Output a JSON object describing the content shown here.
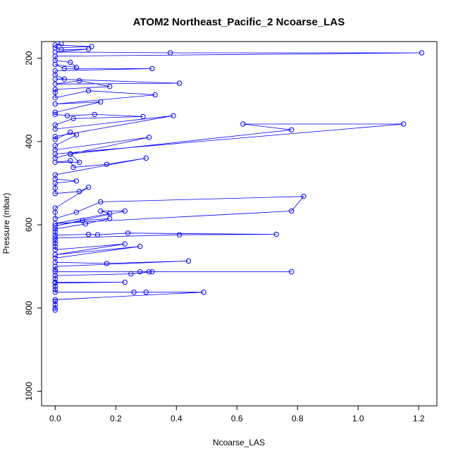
{
  "chart_data": {
    "type": "scatter",
    "title": "ATOM2 Northeast_Pacific_2 Ncoarse_LAS",
    "xlabel": "Ncoarse_LAS",
    "ylabel": "Pressure (mbar)",
    "xlim": [
      -0.045,
      1.26
    ],
    "ylim": [
      1035,
      160
    ],
    "y_reversed": true,
    "x_ticks": [
      0.0,
      0.2,
      0.4,
      0.6,
      0.8,
      1.0,
      1.2
    ],
    "x_tick_labels": [
      "0.0",
      "0.2",
      "0.4",
      "0.6",
      "0.8",
      "1.0",
      "1.2"
    ],
    "y_ticks": [
      200,
      400,
      600,
      800,
      1000
    ],
    "y_tick_labels": [
      "200",
      "400",
      "600",
      "800",
      "1000"
    ],
    "grid": false,
    "series_color": "#0000ff",
    "marker": "open-circle",
    "series": [
      {
        "connected": true,
        "points": [
          [
            0.0,
            805
          ],
          [
            0.0,
            800
          ],
          [
            0.0,
            792
          ],
          [
            0.0,
            784
          ],
          [
            0.0,
            780
          ],
          [
            0.49,
            762
          ],
          [
            0.3,
            762
          ],
          [
            0.26,
            762
          ],
          [
            0.0,
            762
          ],
          [
            0.0,
            755
          ],
          [
            0.0,
            748
          ],
          [
            0.0,
            740
          ],
          [
            0.23,
            738
          ],
          [
            0.0,
            738
          ],
          [
            0.0,
            730
          ],
          [
            0.0,
            722
          ],
          [
            0.25,
            718
          ],
          [
            0.32,
            713
          ],
          [
            0.78,
            713
          ],
          [
            0.31,
            713
          ],
          [
            0.28,
            713
          ],
          [
            0.0,
            713
          ],
          [
            0.0,
            708
          ],
          [
            0.0,
            700
          ],
          [
            0.44,
            687
          ],
          [
            0.17,
            693
          ],
          [
            0.0,
            690
          ],
          [
            0.0,
            680
          ],
          [
            0.28,
            652
          ],
          [
            0.0,
            672
          ],
          [
            0.23,
            646
          ],
          [
            0.0,
            660
          ],
          [
            0.0,
            652
          ],
          [
            0.0,
            645
          ],
          [
            0.0,
            638
          ],
          [
            0.0,
            632
          ],
          [
            0.41,
            624
          ],
          [
            0.73,
            623
          ],
          [
            0.24,
            620
          ],
          [
            0.14,
            624
          ],
          [
            0.11,
            623
          ],
          [
            0.0,
            625
          ],
          [
            0.0,
            617
          ],
          [
            0.0,
            610
          ],
          [
            0.1,
            598
          ],
          [
            0.18,
            585
          ],
          [
            0.09,
            590
          ],
          [
            0.0,
            603
          ],
          [
            0.23,
            567
          ],
          [
            0.15,
            567
          ],
          [
            0.18,
            573
          ],
          [
            0.0,
            597
          ],
          [
            0.78,
            567
          ],
          [
            0.82,
            532
          ],
          [
            0.15,
            545
          ],
          [
            0.07,
            570
          ],
          [
            0.0,
            585
          ],
          [
            0.0,
            570
          ],
          [
            0.0,
            560
          ],
          [
            0.11,
            510
          ],
          [
            0.08,
            520
          ],
          [
            0.0,
            525
          ],
          [
            0.0,
            512
          ],
          [
            0.0,
            500
          ],
          [
            0.07,
            495
          ],
          [
            0.0,
            490
          ],
          [
            0.0,
            480
          ],
          [
            0.3,
            440
          ],
          [
            0.17,
            455
          ],
          [
            0.06,
            462
          ],
          [
            0.05,
            446
          ],
          [
            0.0,
            450
          ],
          [
            0.08,
            450
          ],
          [
            0.05,
            430
          ],
          [
            0.0,
            440
          ],
          [
            0.0,
            430
          ],
          [
            1.15,
            358
          ],
          [
            0.62,
            358
          ],
          [
            0.78,
            372
          ],
          [
            0.05,
            430
          ],
          [
            0.31,
            390
          ],
          [
            0.0,
            420
          ],
          [
            0.0,
            410
          ],
          [
            0.07,
            384
          ],
          [
            0.05,
            378
          ],
          [
            0.0,
            395
          ],
          [
            0.0,
            388
          ],
          [
            0.39,
            338
          ],
          [
            0.0,
            370
          ],
          [
            0.0,
            360
          ],
          [
            0.06,
            345
          ],
          [
            0.29,
            340
          ],
          [
            0.13,
            335
          ],
          [
            0.04,
            338
          ],
          [
            0.0,
            335
          ],
          [
            0.0,
            330
          ],
          [
            0.15,
            305
          ],
          [
            0.0,
            310
          ],
          [
            0.33,
            288
          ],
          [
            0.11,
            278
          ],
          [
            0.0,
            295
          ],
          [
            0.0,
            282
          ],
          [
            0.0,
            275
          ],
          [
            0.18,
            268
          ],
          [
            0.08,
            254
          ],
          [
            0.0,
            262
          ],
          [
            0.41,
            260
          ],
          [
            0.0,
            250
          ],
          [
            0.03,
            250
          ],
          [
            0.0,
            240
          ],
          [
            0.0,
            230
          ],
          [
            0.32,
            225
          ],
          [
            0.03,
            225
          ],
          [
            0.0,
            215
          ],
          [
            0.07,
            222
          ],
          [
            0.05,
            210
          ],
          [
            0.0,
            205
          ],
          [
            0.0,
            195
          ],
          [
            1.21,
            187
          ],
          [
            0.38,
            187
          ],
          [
            0.0,
            185
          ],
          [
            0.11,
            178
          ],
          [
            0.02,
            180
          ],
          [
            0.0,
            175
          ],
          [
            0.12,
            172
          ],
          [
            0.0,
            168
          ],
          [
            0.02,
            165
          ]
        ]
      }
    ]
  }
}
